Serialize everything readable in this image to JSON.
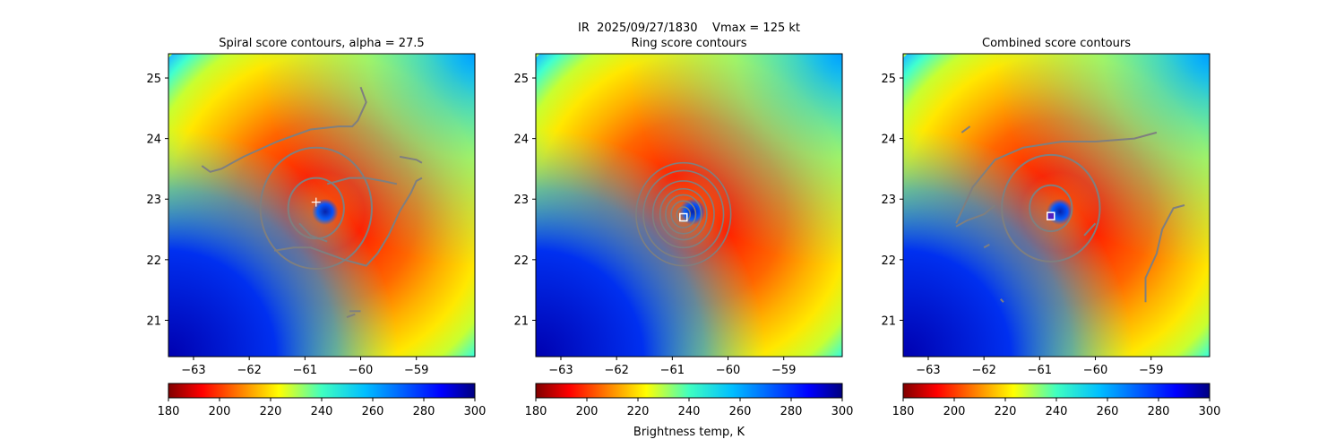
{
  "figure": {
    "suptitle": "IR  2025/09/27/1830    Vmax = 125 kt",
    "colorbar_label": "Brightness temp, K"
  },
  "chart_data": [
    {
      "type": "heatmap",
      "title": "Spiral score contours, alpha = 27.5",
      "xlim": [
        -63.45,
        -57.95
      ],
      "ylim": [
        20.4,
        25.4
      ],
      "xticks": [
        -63,
        -62,
        -61,
        -60,
        -59
      ],
      "yticks": [
        21,
        22,
        23,
        24,
        25
      ],
      "center": {
        "lon": -60.8,
        "lat": 22.85
      },
      "marker": {
        "kind": "crosshair",
        "lon": -60.8,
        "lat": 22.95
      },
      "colorbar": {
        "min": 180,
        "max": 300,
        "ticks": [
          180,
          200,
          220,
          240,
          260,
          280,
          300
        ],
        "cmap": "jet_r"
      },
      "contours": [
        {
          "kind": "circle",
          "cx": -60.8,
          "cy": 22.85,
          "r": 0.5
        },
        {
          "kind": "circle",
          "cx": -60.8,
          "cy": 22.85,
          "r": 1.0
        },
        {
          "kind": "path",
          "points": [
            [
              -62.85,
              23.55
            ],
            [
              -62.7,
              23.45
            ],
            [
              -62.5,
              23.5
            ],
            [
              -62.1,
              23.7
            ],
            [
              -61.5,
              23.95
            ],
            [
              -60.9,
              24.15
            ],
            [
              -60.4,
              24.2
            ],
            [
              -60.15,
              24.2
            ],
            [
              -60.05,
              24.3
            ],
            [
              -59.9,
              24.6
            ],
            [
              -60.0,
              24.85
            ]
          ]
        },
        {
          "kind": "path",
          "points": [
            [
              -61.55,
              22.15
            ],
            [
              -61.2,
              22.2
            ],
            [
              -60.9,
              22.2
            ],
            [
              -60.3,
              22.0
            ],
            [
              -59.9,
              21.9
            ],
            [
              -59.7,
              22.1
            ],
            [
              -59.5,
              22.4
            ],
            [
              -59.3,
              22.8
            ],
            [
              -59.1,
              23.1
            ],
            [
              -59.0,
              23.3
            ],
            [
              -58.9,
              23.35
            ]
          ]
        },
        {
          "kind": "path",
          "points": [
            [
              -61.1,
              22.6
            ],
            [
              -60.9,
              22.4
            ],
            [
              -60.6,
              22.3
            ]
          ]
        },
        {
          "kind": "path",
          "points": [
            [
              -59.3,
              23.7
            ],
            [
              -59.0,
              23.65
            ],
            [
              -58.9,
              23.6
            ]
          ]
        },
        {
          "kind": "path",
          "points": [
            [
              -60.25,
              21.05
            ],
            [
              -60.1,
              21.1
            ]
          ]
        },
        {
          "kind": "path",
          "points": [
            [
              -60.2,
              21.15
            ],
            [
              -60.0,
              21.15
            ]
          ]
        },
        {
          "kind": "path",
          "points": [
            [
              -60.6,
              23.25
            ],
            [
              -60.4,
              23.3
            ],
            [
              -60.2,
              23.35
            ],
            [
              -59.9,
              23.35
            ],
            [
              -59.6,
              23.3
            ],
            [
              -59.35,
              23.25
            ]
          ]
        }
      ]
    },
    {
      "type": "heatmap",
      "title": "Ring score contours",
      "xlim": [
        -63.45,
        -57.95
      ],
      "ylim": [
        20.4,
        25.4
      ],
      "xticks": [
        -63,
        -62,
        -61,
        -60,
        -59
      ],
      "yticks": [
        21,
        22,
        23,
        24,
        25
      ],
      "center": {
        "lon": -60.8,
        "lat": 22.85
      },
      "marker": {
        "kind": "square",
        "lon": -60.8,
        "lat": 22.7
      },
      "colorbar": {
        "min": 180,
        "max": 300,
        "ticks": [
          180,
          200,
          220,
          240,
          260,
          280,
          300
        ],
        "cmap": "jet_r"
      },
      "contours": [
        {
          "kind": "circle",
          "cx": -60.8,
          "cy": 22.75,
          "r": 0.12
        },
        {
          "kind": "circle",
          "cx": -60.8,
          "cy": 22.75,
          "r": 0.22
        },
        {
          "kind": "circle",
          "cx": -60.8,
          "cy": 22.75,
          "r": 0.32
        },
        {
          "kind": "circle",
          "cx": -60.8,
          "cy": 22.75,
          "r": 0.42
        },
        {
          "kind": "circle",
          "cx": -60.8,
          "cy": 22.75,
          "r": 0.55
        },
        {
          "kind": "circle",
          "cx": -60.8,
          "cy": 22.75,
          "r": 0.72
        },
        {
          "kind": "circle",
          "cx": -60.8,
          "cy": 22.75,
          "r": 0.85
        }
      ]
    },
    {
      "type": "heatmap",
      "title": "Combined score contours",
      "xlim": [
        -63.45,
        -57.95
      ],
      "ylim": [
        20.4,
        25.4
      ],
      "xticks": [
        -63,
        -62,
        -61,
        -60,
        -59
      ],
      "yticks": [
        21,
        22,
        23,
        24,
        25
      ],
      "center": {
        "lon": -60.8,
        "lat": 22.85
      },
      "marker": {
        "kind": "square-purple",
        "lon": -60.8,
        "lat": 22.72
      },
      "colorbar": {
        "min": 180,
        "max": 300,
        "ticks": [
          180,
          200,
          220,
          240,
          260,
          280,
          300
        ],
        "cmap": "jet_r"
      },
      "contours": [
        {
          "kind": "circle",
          "cx": -60.8,
          "cy": 22.85,
          "r": 0.38
        },
        {
          "kind": "circle",
          "cx": -60.8,
          "cy": 22.85,
          "r": 0.88
        },
        {
          "kind": "path",
          "points": [
            [
              -62.5,
              22.6
            ],
            [
              -62.2,
              23.2
            ],
            [
              -61.8,
              23.65
            ],
            [
              -61.3,
              23.85
            ],
            [
              -60.6,
              23.95
            ],
            [
              -60.0,
              23.95
            ],
            [
              -59.3,
              24.0
            ],
            [
              -58.9,
              24.1
            ]
          ]
        },
        {
          "kind": "path",
          "points": [
            [
              -62.4,
              24.1
            ],
            [
              -62.25,
              24.2
            ]
          ]
        },
        {
          "kind": "path",
          "points": [
            [
              -62.5,
              22.55
            ],
            [
              -62.3,
              22.65
            ],
            [
              -62.0,
              22.75
            ],
            [
              -61.8,
              22.9
            ]
          ]
        },
        {
          "kind": "path",
          "points": [
            [
              -62.0,
              22.2
            ],
            [
              -61.9,
              22.25
            ]
          ]
        },
        {
          "kind": "path",
          "points": [
            [
              -59.1,
              21.3
            ],
            [
              -59.1,
              21.7
            ],
            [
              -58.9,
              22.1
            ],
            [
              -58.8,
              22.5
            ],
            [
              -58.6,
              22.85
            ],
            [
              -58.4,
              22.9
            ]
          ]
        },
        {
          "kind": "path",
          "points": [
            [
              -61.7,
              21.35
            ],
            [
              -61.65,
              21.3
            ]
          ]
        },
        {
          "kind": "path",
          "points": [
            [
              -60.2,
              22.4
            ],
            [
              -60.0,
              22.6
            ]
          ]
        }
      ]
    }
  ]
}
